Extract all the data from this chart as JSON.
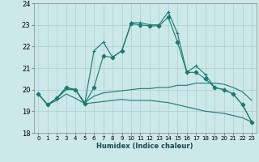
{
  "xlabel": "Humidex (Indice chaleur)",
  "ylabel": "",
  "xlim": [
    -0.5,
    23.5
  ],
  "ylim": [
    18,
    24
  ],
  "yticks": [
    18,
    19,
    20,
    21,
    22,
    23,
    24
  ],
  "xticks": [
    0,
    1,
    2,
    3,
    4,
    5,
    6,
    7,
    8,
    9,
    10,
    11,
    12,
    13,
    14,
    15,
    16,
    17,
    18,
    19,
    20,
    21,
    22,
    23
  ],
  "bg_color": "#cce8e8",
  "line_color": "#1a7a6e",
  "grid_color": "#aacfcf",
  "lines": [
    {
      "x": [
        0,
        1,
        2,
        3,
        4,
        5,
        6,
        7,
        8,
        9,
        10,
        11,
        12,
        13,
        14,
        15,
        16,
        17,
        18,
        19,
        20,
        21,
        22,
        23
      ],
      "y": [
        19.8,
        19.3,
        19.6,
        20.1,
        20.0,
        19.35,
        21.8,
        22.2,
        21.5,
        21.8,
        23.1,
        23.1,
        23.0,
        23.0,
        23.6,
        22.6,
        20.8,
        21.1,
        20.7,
        20.1,
        20.0,
        19.8,
        19.3,
        18.5
      ],
      "marker": "+"
    },
    {
      "x": [
        0,
        1,
        2,
        3,
        4,
        5,
        6,
        7,
        8,
        9,
        10,
        11,
        12,
        13,
        14,
        15,
        16,
        17,
        18,
        19,
        20,
        21,
        22,
        23
      ],
      "y": [
        19.8,
        19.3,
        19.6,
        20.1,
        20.0,
        19.35,
        20.1,
        21.55,
        21.5,
        21.8,
        23.05,
        23.0,
        22.95,
        22.95,
        23.35,
        22.2,
        20.8,
        20.8,
        20.5,
        20.1,
        20.0,
        19.8,
        19.3,
        18.5
      ],
      "marker": "D"
    },
    {
      "x": [
        0,
        1,
        2,
        3,
        4,
        5,
        6,
        7,
        8,
        9,
        10,
        11,
        12,
        13,
        14,
        15,
        16,
        17,
        18,
        19,
        20,
        21,
        22,
        23
      ],
      "y": [
        19.8,
        19.3,
        19.6,
        20.0,
        20.0,
        19.4,
        19.7,
        19.85,
        19.9,
        19.95,
        20.0,
        20.05,
        20.05,
        20.1,
        20.1,
        20.2,
        20.2,
        20.3,
        20.3,
        20.3,
        20.25,
        20.1,
        19.9,
        19.5
      ],
      "marker": null
    },
    {
      "x": [
        0,
        1,
        2,
        3,
        4,
        5,
        6,
        7,
        8,
        9,
        10,
        11,
        12,
        13,
        14,
        15,
        16,
        17,
        18,
        19,
        20,
        21,
        22,
        23
      ],
      "y": [
        19.8,
        19.3,
        19.5,
        19.8,
        19.6,
        19.35,
        19.4,
        19.45,
        19.5,
        19.55,
        19.5,
        19.5,
        19.5,
        19.45,
        19.4,
        19.3,
        19.2,
        19.1,
        19.0,
        18.95,
        18.9,
        18.8,
        18.7,
        18.5
      ],
      "marker": null
    }
  ]
}
